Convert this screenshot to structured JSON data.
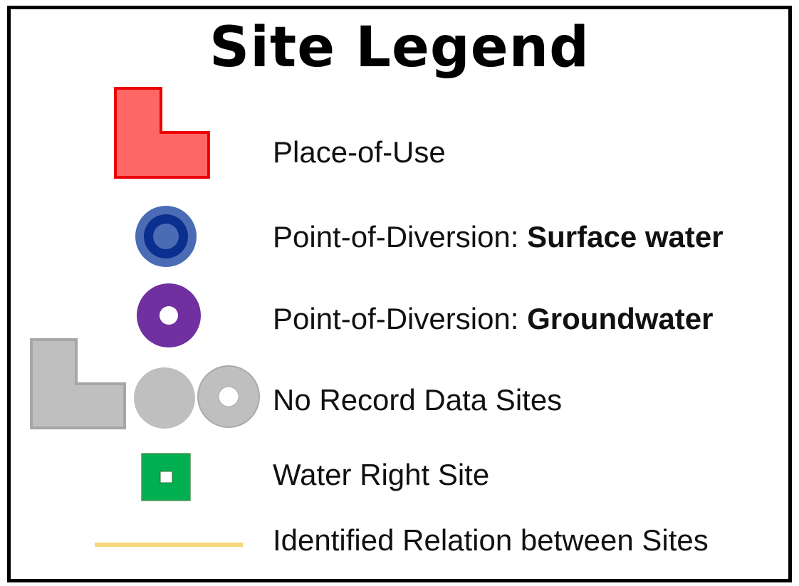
{
  "legend": {
    "title": "Site Legend",
    "items": [
      {
        "label": "Place-of-Use",
        "icon": "place-of-use-icon",
        "fill": "#ff6666",
        "stroke": "#ee0000"
      },
      {
        "label_prefix": "Point-of-Diversion: ",
        "label_bold": "Surface water",
        "icon": "surface-water-diversion-icon",
        "outer": "#4b6bb5",
        "ring": "#0a2f8f",
        "inner": "#4b6bb5"
      },
      {
        "label_prefix": "Point-of-Diversion: ",
        "label_bold": "Groundwater",
        "icon": "groundwater-diversion-icon",
        "fill": "#7030a0"
      },
      {
        "label": "No Record Data Sites",
        "icon": "no-record-data-icon",
        "fill": "#bfbfbf",
        "stroke": "#a6a6a6"
      },
      {
        "label": "Water Right Site",
        "icon": "water-right-site-icon",
        "fill": "#00b050"
      },
      {
        "label": "Identified Relation between Sites",
        "icon": "relation-line-icon",
        "color": "#f5d77a"
      }
    ]
  }
}
